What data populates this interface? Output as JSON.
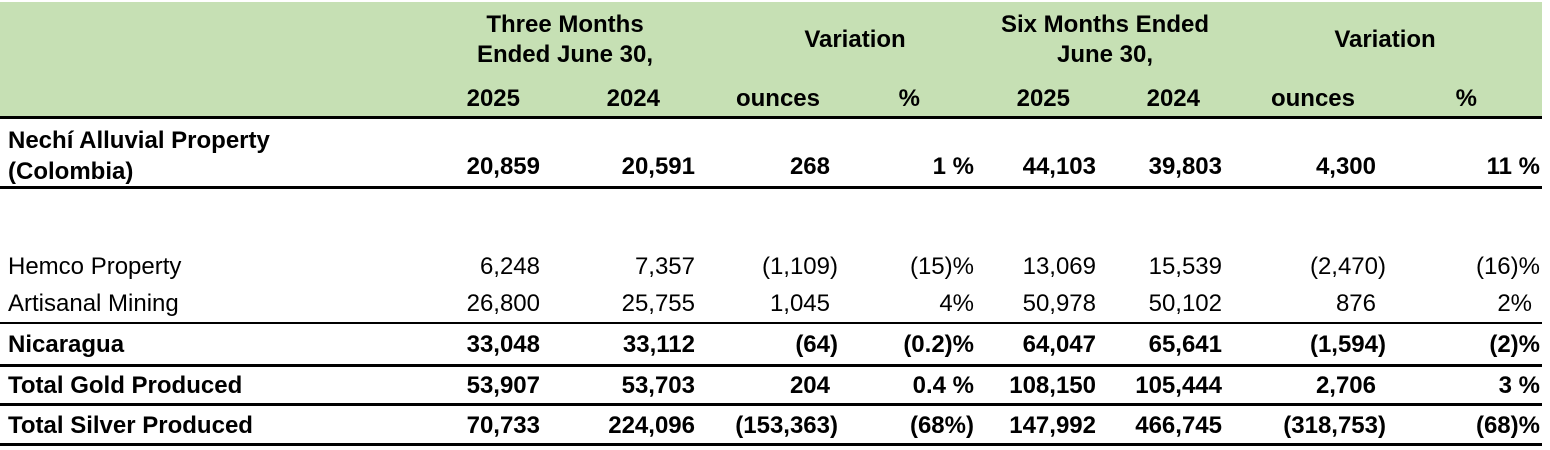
{
  "header": {
    "three_months_line1": "Three Months",
    "three_months_line2": "Ended June 30,",
    "variation_a": "Variation",
    "six_months_line1": "Six Months Ended",
    "six_months_line2": "June 30,",
    "variation_b": "Variation",
    "sub": [
      "2025",
      "2024",
      "ounces",
      "%",
      "2025",
      "2024",
      "ounces",
      "%"
    ]
  },
  "rows": [
    {
      "label_line1": "Nechí Alluvial Property",
      "label_line2": "(Colombia)",
      "values": [
        "20,859",
        "20,591",
        "268",
        "1 %",
        "44,103",
        "39,803",
        "4,300",
        "11 %"
      ]
    },
    {
      "label": "Hemco Property",
      "values": [
        "6,248",
        "7,357",
        "(1,109)",
        "(15)%",
        "13,069",
        "15,539",
        "(2,470)",
        "(16)%"
      ]
    },
    {
      "label": "Artisanal Mining",
      "values": [
        "26,800",
        "25,755",
        "1,045",
        "4%",
        "50,978",
        "50,102",
        "876",
        "2%"
      ]
    },
    {
      "label": "Nicaragua",
      "values": [
        "33,048",
        "33,112",
        "(64)",
        "(0.2)%",
        "64,047",
        "65,641",
        "(1,594)",
        "(2)%"
      ]
    },
    {
      "label": "Total Gold Produced",
      "values": [
        "53,907",
        "53,703",
        "204",
        "0.4 %",
        "108,150",
        "105,444",
        "2,706",
        "3 %"
      ]
    },
    {
      "label": "Total Silver Produced",
      "values": [
        "70,733",
        "224,096",
        "(153,363)",
        "(68%)",
        "147,992",
        "466,745",
        "(318,753)",
        "(68)%"
      ]
    }
  ]
}
